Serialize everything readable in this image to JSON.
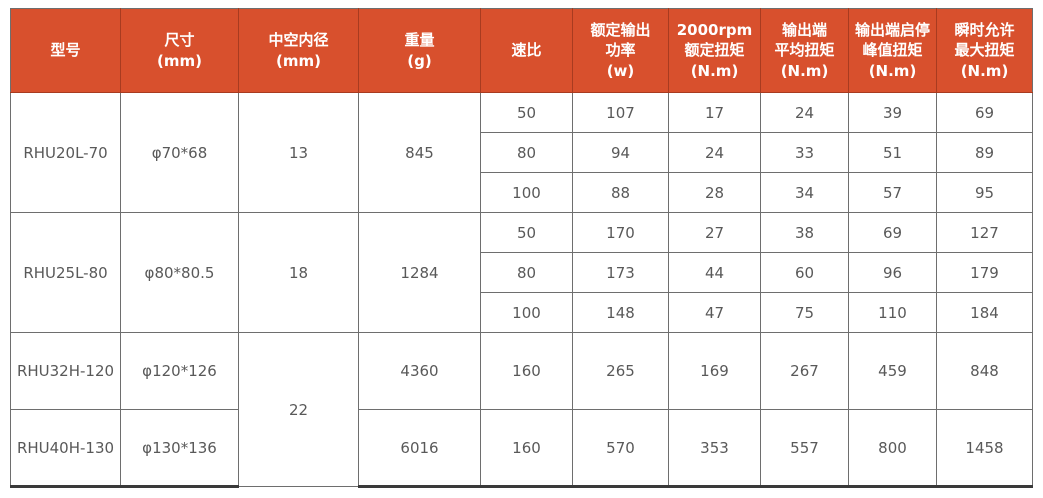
{
  "table": {
    "accent_color": "#d8502d",
    "grid_color": "#6e6e6e",
    "body_text_color": "#595959",
    "columns": [
      "型号",
      "尺寸\n(mm)",
      "中空内径\n(mm)",
      "重量\n(g)",
      "速比",
      "额定输出\n功率\n(w)",
      "2000rpm\n额定扭矩\n(N.m)",
      "输出端\n平均扭矩\n(N.m)",
      "输出端启停\n峰值扭矩\n(N.m)",
      "瞬时允许\n最大扭矩\n(N.m)"
    ],
    "models": [
      {
        "model": "RHU20L-70",
        "size": "φ70*68",
        "bore": "13",
        "weight": "845",
        "variants": [
          {
            "ratio": "50",
            "power": "107",
            "rated_torque": "17",
            "avg_torque": "24",
            "peak_torque": "39",
            "max_torque": "69"
          },
          {
            "ratio": "80",
            "power": "94",
            "rated_torque": "24",
            "avg_torque": "33",
            "peak_torque": "51",
            "max_torque": "89"
          },
          {
            "ratio": "100",
            "power": "88",
            "rated_torque": "28",
            "avg_torque": "34",
            "peak_torque": "57",
            "max_torque": "95"
          }
        ]
      },
      {
        "model": "RHU25L-80",
        "size": "φ80*80.5",
        "bore": "18",
        "weight": "1284",
        "variants": [
          {
            "ratio": "50",
            "power": "170",
            "rated_torque": "27",
            "avg_torque": "38",
            "peak_torque": "69",
            "max_torque": "127"
          },
          {
            "ratio": "80",
            "power": "173",
            "rated_torque": "44",
            "avg_torque": "60",
            "peak_torque": "96",
            "max_torque": "179"
          },
          {
            "ratio": "100",
            "power": "148",
            "rated_torque": "47",
            "avg_torque": "75",
            "peak_torque": "110",
            "max_torque": "184"
          }
        ]
      },
      {
        "model": "RHU32H-120",
        "size": "φ120*126",
        "bore": "22",
        "weight": "4360",
        "variants": [
          {
            "ratio": "160",
            "power": "265",
            "rated_torque": "169",
            "avg_torque": "267",
            "peak_torque": "459",
            "max_torque": "848"
          }
        ]
      },
      {
        "model": "RHU40H-130",
        "size": "φ130*136",
        "weight": "6016",
        "variants": [
          {
            "ratio": "160",
            "power": "570",
            "rated_torque": "353",
            "avg_torque": "557",
            "peak_torque": "800",
            "max_torque": "1458"
          }
        ]
      }
    ]
  }
}
